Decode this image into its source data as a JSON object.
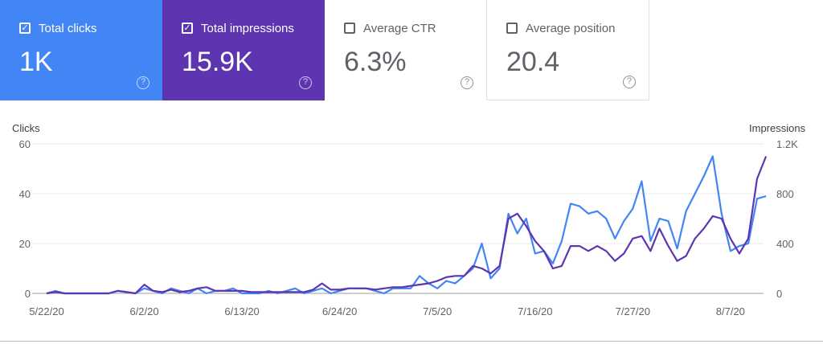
{
  "cards": [
    {
      "label": "Total clicks",
      "value": "1K",
      "checked": true,
      "help": "?"
    },
    {
      "label": "Total impressions",
      "value": "15.9K",
      "checked": true,
      "help": "?"
    },
    {
      "label": "Average CTR",
      "value": "6.3%",
      "checked": false,
      "help": "?"
    },
    {
      "label": "Average position",
      "value": "20.4",
      "checked": false,
      "help": "?"
    }
  ],
  "colors": {
    "clicks": "#4285f4",
    "impressions": "#5e35b1"
  },
  "chart_data": {
    "type": "line",
    "ylabel_left": "Clicks",
    "ylabel_right": "Impressions",
    "y_left": {
      "range": [
        0,
        60
      ],
      "ticks": [
        {
          "v": 0,
          "label": "0"
        },
        {
          "v": 20,
          "label": "20"
        },
        {
          "v": 40,
          "label": "40"
        },
        {
          "v": 60,
          "label": "60"
        }
      ]
    },
    "y_right": {
      "range": [
        0,
        1200
      ],
      "ticks": [
        {
          "v": 0,
          "label": "0"
        },
        {
          "v": 400,
          "label": "400"
        },
        {
          "v": 800,
          "label": "800"
        },
        {
          "v": 1200,
          "label": "1.2K"
        }
      ]
    },
    "x_ticks": [
      {
        "day": 0,
        "label": "5/22/20"
      },
      {
        "day": 11,
        "label": "6/2/20"
      },
      {
        "day": 22,
        "label": "6/13/20"
      },
      {
        "day": 33,
        "label": "6/24/20"
      },
      {
        "day": 44,
        "label": "7/5/20"
      },
      {
        "day": 55,
        "label": "7/16/20"
      },
      {
        "day": 66,
        "label": "7/27/20"
      },
      {
        "day": 77,
        "label": "8/7/20"
      }
    ],
    "days": 82,
    "series": [
      {
        "name": "Clicks",
        "axis": "left",
        "values": [
          0,
          1,
          0,
          0,
          0,
          0,
          0,
          0,
          1,
          0.5,
          0,
          2,
          1,
          0,
          2,
          1,
          0,
          2,
          0,
          1,
          1,
          2,
          0,
          0,
          0,
          1,
          0,
          1,
          2,
          0,
          1,
          2,
          0,
          1,
          2,
          2,
          2,
          1,
          0,
          2,
          2,
          2,
          7,
          4,
          2,
          5,
          4,
          7,
          10,
          20,
          6,
          10,
          32,
          24,
          30,
          16,
          17,
          12,
          21,
          36,
          35,
          32,
          33,
          30,
          22,
          29,
          34,
          45,
          21,
          30,
          29,
          18,
          33,
          40,
          47,
          55,
          32,
          17,
          19,
          20,
          38,
          39
        ]
      },
      {
        "name": "Impressions",
        "axis": "right",
        "values": [
          0,
          10,
          0,
          0,
          0,
          0,
          0,
          0,
          20,
          10,
          0,
          70,
          20,
          10,
          30,
          10,
          20,
          40,
          50,
          20,
          20,
          20,
          20,
          10,
          10,
          10,
          10,
          10,
          10,
          10,
          30,
          80,
          30,
          30,
          40,
          40,
          40,
          30,
          40,
          50,
          50,
          60,
          70,
          80,
          100,
          130,
          140,
          140,
          220,
          200,
          160,
          220,
          600,
          640,
          540,
          420,
          340,
          200,
          220,
          380,
          380,
          340,
          380,
          340,
          260,
          320,
          440,
          460,
          340,
          520,
          380,
          260,
          300,
          440,
          520,
          620,
          600,
          440,
          320,
          440,
          920,
          1100
        ]
      }
    ]
  }
}
